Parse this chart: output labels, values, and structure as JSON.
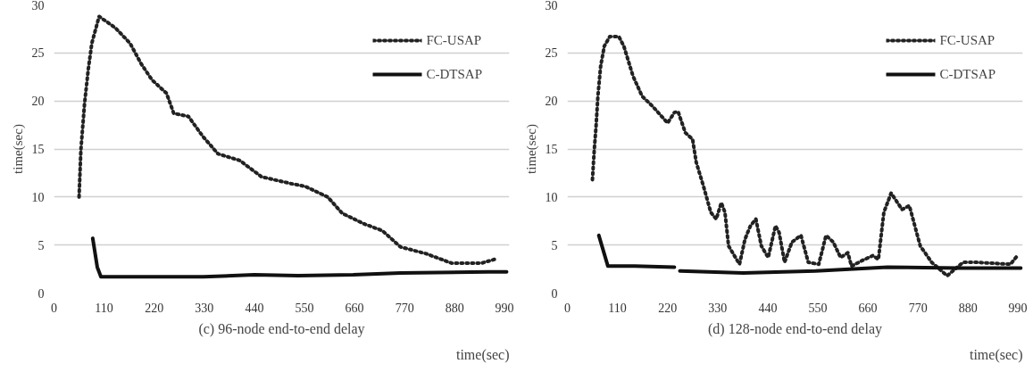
{
  "chart_data": [
    {
      "type": "line",
      "title": "(c) 96-node end-to-end delay",
      "xlabel": "time(sec)",
      "ylabel": "time(sec)",
      "xlim": [
        0,
        1000
      ],
      "xticks": [
        0,
        110,
        220,
        330,
        440,
        550,
        660,
        770,
        880,
        990
      ],
      "ylim": [
        0,
        30
      ],
      "yticks": [
        0,
        5,
        10,
        15,
        20,
        25,
        30
      ],
      "grid": "y",
      "legend": "top right",
      "series": [
        {
          "name": "FC-USAP",
          "color": "#222222",
          "line_style": "dotted",
          "x": [
            55,
            59,
            67,
            75,
            83,
            99,
            135,
            167,
            191,
            215,
            247,
            263,
            295,
            327,
            360,
            408,
            456,
            520,
            552,
            601,
            633,
            681,
            721,
            761,
            817,
            874,
            938,
            974
          ],
          "values": [
            10,
            14.9,
            19.7,
            23.2,
            26,
            28.8,
            27.6,
            26,
            23.9,
            22.2,
            20.8,
            18.7,
            18.4,
            16.3,
            14.5,
            13.8,
            12.1,
            11.4,
            11.1,
            10,
            8.3,
            7.2,
            6.5,
            4.8,
            4.1,
            3.1,
            3.1,
            3.6
          ]
        },
        {
          "name": "C-DTSAP",
          "color": "#111111",
          "line_style": "solid",
          "x": [
            85,
            95,
            103,
            215,
            328,
            440,
            536,
            657,
            761,
            954,
            994
          ],
          "values": [
            5.7,
            2.7,
            1.7,
            1.7,
            1.7,
            1.9,
            1.8,
            1.9,
            2.1,
            2.2,
            2.2
          ]
        }
      ]
    },
    {
      "type": "line",
      "title": "(d) 128-node end-to-end delay",
      "xlabel": "time(sec)",
      "ylabel": "time(sec)",
      "xlim": [
        0,
        1000
      ],
      "xticks": [
        0,
        110,
        220,
        330,
        440,
        550,
        660,
        770,
        880,
        990
      ],
      "ylim": [
        0,
        30
      ],
      "yticks": [
        0,
        5,
        10,
        15,
        20,
        25,
        30
      ],
      "grid": "y",
      "legend": "top right",
      "series": [
        {
          "name": "FC-USAP",
          "color": "#222222",
          "line_style": "dotted",
          "x": [
            55,
            59,
            63,
            67,
            73,
            81,
            93,
            113,
            124,
            144,
            164,
            188,
            220,
            235,
            243,
            259,
            275,
            283,
            299,
            315,
            327,
            338,
            346,
            354,
            378,
            390,
            402,
            414,
            426,
            441,
            457,
            465,
            477,
            493,
            513,
            529,
            552,
            568,
            584,
            600,
            616,
            624,
            648,
            671,
            683,
            695,
            711,
            735,
            751,
            775,
            800,
            834,
            869,
            897,
            973,
            990
          ],
          "values": [
            11.8,
            14.9,
            17.4,
            20.5,
            23.6,
            25.7,
            26.7,
            26.7,
            25.7,
            22.6,
            20.5,
            19.4,
            17.7,
            18.8,
            18.9,
            16.7,
            16,
            13.6,
            11.1,
            8.4,
            7.7,
            9.4,
            8.4,
            4.9,
            3,
            5.6,
            7,
            7.7,
            4.9,
            3.7,
            7,
            6.3,
            3.2,
            5.3,
            6,
            3.2,
            3,
            6,
            5.3,
            3.7,
            4.2,
            2.8,
            3.4,
            3.9,
            3.5,
            8.4,
            10.4,
            8.7,
            9.1,
            4.9,
            3.2,
            1.8,
            3.2,
            3.2,
            3,
            4
          ]
        },
        {
          "name": "C-DTSAP",
          "color": "#111111",
          "line_style": "solid",
          "x": [
            69,
            89,
            148,
            235,
            241,
            247,
            386,
            545,
            703,
            862,
            996
          ],
          "values": [
            6,
            2.8,
            2.8,
            2.7,
            null,
            2.3,
            2.1,
            2.3,
            2.7,
            2.6,
            2.6
          ]
        }
      ]
    }
  ]
}
